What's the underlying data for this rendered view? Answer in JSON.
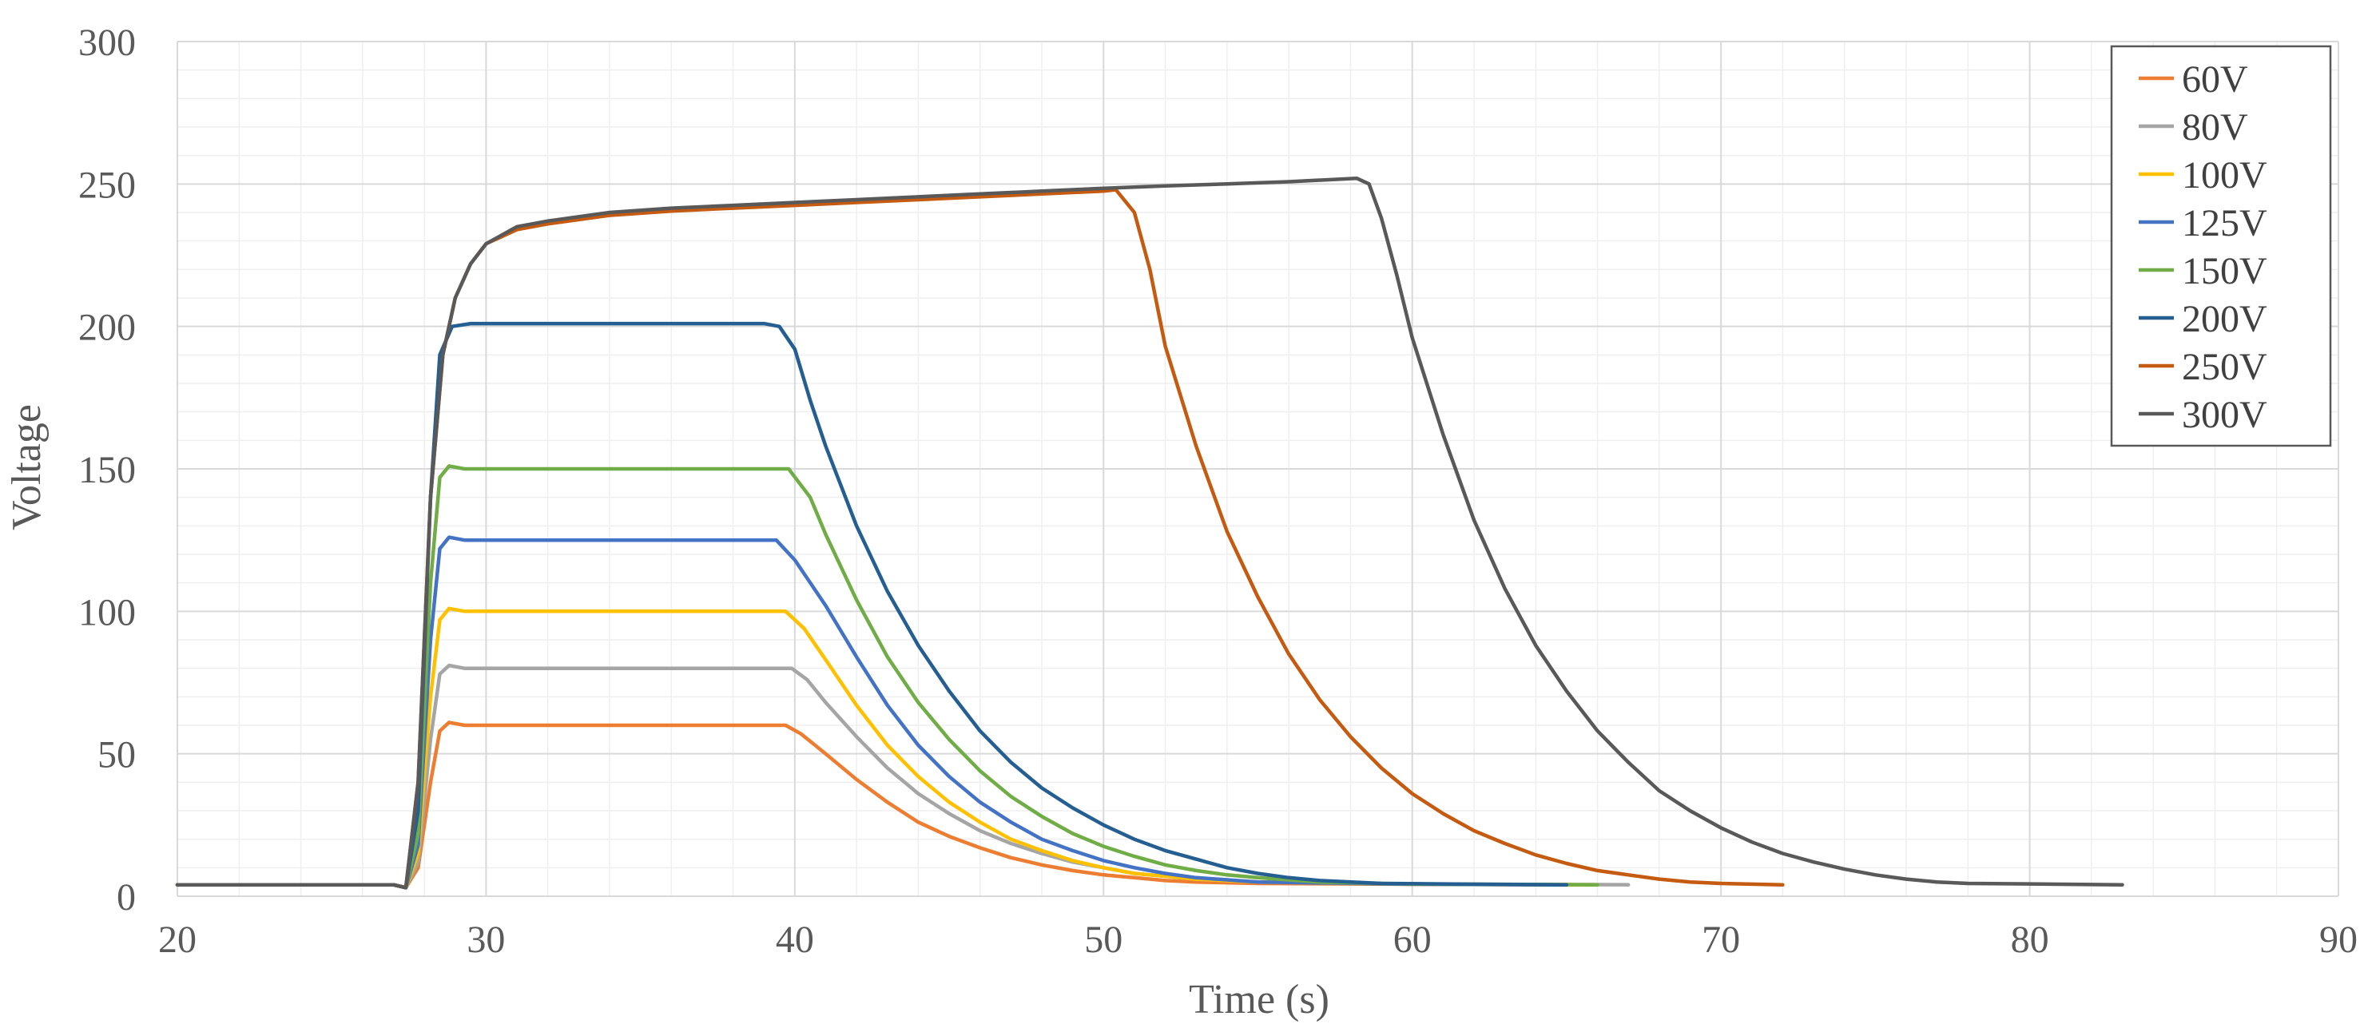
{
  "chart_data": {
    "type": "line",
    "title": "",
    "xlabel": "Time (s)",
    "ylabel": "Voltage",
    "xlim": [
      20,
      90
    ],
    "ylim": [
      0,
      300
    ],
    "x_ticks": [
      20,
      30,
      40,
      50,
      60,
      70,
      80,
      90
    ],
    "y_ticks": [
      0,
      50,
      100,
      150,
      200,
      250,
      300
    ],
    "x_minor_step": 2,
    "y_minor_step": 10,
    "grid": true,
    "legend_position": "top-right",
    "series": [
      {
        "name": "60V",
        "color": "#ED7D31",
        "points": [
          [
            20,
            4
          ],
          [
            27,
            4
          ],
          [
            27.4,
            3
          ],
          [
            27.8,
            10
          ],
          [
            28.2,
            40
          ],
          [
            28.5,
            58
          ],
          [
            28.8,
            61
          ],
          [
            29.3,
            60
          ],
          [
            39,
            60
          ],
          [
            39.7,
            60
          ],
          [
            40.2,
            57
          ],
          [
            41,
            50
          ],
          [
            42,
            41
          ],
          [
            43,
            33
          ],
          [
            44,
            26
          ],
          [
            45,
            21
          ],
          [
            46,
            17
          ],
          [
            47,
            13.5
          ],
          [
            48,
            11
          ],
          [
            49,
            9
          ],
          [
            50,
            7.5
          ],
          [
            51,
            6.5
          ],
          [
            52,
            5.5
          ],
          [
            53,
            5
          ],
          [
            55,
            4.5
          ],
          [
            60,
            4.2
          ],
          [
            65,
            4
          ]
        ]
      },
      {
        "name": "80V",
        "color": "#A5A5A5",
        "points": [
          [
            20,
            4
          ],
          [
            27,
            4
          ],
          [
            27.4,
            3
          ],
          [
            27.8,
            12
          ],
          [
            28.2,
            55
          ],
          [
            28.5,
            78
          ],
          [
            28.8,
            81
          ],
          [
            29.3,
            80
          ],
          [
            39,
            80
          ],
          [
            39.9,
            80
          ],
          [
            40.4,
            76
          ],
          [
            41,
            68
          ],
          [
            42,
            56
          ],
          [
            43,
            45
          ],
          [
            44,
            36
          ],
          [
            45,
            29
          ],
          [
            46,
            23
          ],
          [
            47,
            18.5
          ],
          [
            48,
            15
          ],
          [
            49,
            12
          ],
          [
            50,
            10
          ],
          [
            51,
            8
          ],
          [
            52,
            7
          ],
          [
            53,
            6
          ],
          [
            55,
            5
          ],
          [
            60,
            4.3
          ],
          [
            67,
            4
          ]
        ]
      },
      {
        "name": "100V",
        "color": "#FFC000",
        "points": [
          [
            20,
            4
          ],
          [
            27,
            4
          ],
          [
            27.4,
            3
          ],
          [
            27.8,
            15
          ],
          [
            28.2,
            70
          ],
          [
            28.5,
            97
          ],
          [
            28.8,
            101
          ],
          [
            29.3,
            100
          ],
          [
            39,
            100
          ],
          [
            39.7,
            100
          ],
          [
            40.3,
            94
          ],
          [
            41,
            83
          ],
          [
            42,
            67
          ],
          [
            43,
            53
          ],
          [
            44,
            42
          ],
          [
            45,
            33
          ],
          [
            46,
            26
          ],
          [
            47,
            20
          ],
          [
            48,
            16
          ],
          [
            49,
            12.5
          ],
          [
            50,
            10
          ],
          [
            51,
            8
          ],
          [
            52,
            7
          ],
          [
            53,
            6
          ],
          [
            55,
            5
          ],
          [
            60,
            4.2
          ],
          [
            66,
            4
          ]
        ]
      },
      {
        "name": "125V",
        "color": "#4472C4",
        "points": [
          [
            20,
            4
          ],
          [
            27,
            4
          ],
          [
            27.4,
            3
          ],
          [
            27.8,
            18
          ],
          [
            28.2,
            90
          ],
          [
            28.5,
            122
          ],
          [
            28.8,
            126
          ],
          [
            29.3,
            125
          ],
          [
            39,
            125
          ],
          [
            39.4,
            125
          ],
          [
            40,
            118
          ],
          [
            41,
            102
          ],
          [
            42,
            84
          ],
          [
            43,
            67
          ],
          [
            44,
            53
          ],
          [
            45,
            42
          ],
          [
            46,
            33
          ],
          [
            47,
            26
          ],
          [
            48,
            20
          ],
          [
            49,
            16
          ],
          [
            50,
            12.5
          ],
          [
            51,
            10
          ],
          [
            52,
            8
          ],
          [
            53,
            6.5
          ],
          [
            55,
            5
          ],
          [
            60,
            4.2
          ],
          [
            65,
            4
          ]
        ]
      },
      {
        "name": "150V",
        "color": "#70AD47",
        "points": [
          [
            20,
            4
          ],
          [
            27,
            4
          ],
          [
            27.4,
            3
          ],
          [
            27.8,
            22
          ],
          [
            28.2,
            110
          ],
          [
            28.5,
            147
          ],
          [
            28.8,
            151
          ],
          [
            29.3,
            150
          ],
          [
            39,
            150
          ],
          [
            39.8,
            150
          ],
          [
            40.5,
            140
          ],
          [
            41,
            127
          ],
          [
            42,
            104
          ],
          [
            43,
            84
          ],
          [
            44,
            68
          ],
          [
            45,
            55
          ],
          [
            46,
            44
          ],
          [
            47,
            35
          ],
          [
            48,
            28
          ],
          [
            49,
            22
          ],
          [
            50,
            17.5
          ],
          [
            51,
            14
          ],
          [
            52,
            11
          ],
          [
            53,
            9
          ],
          [
            54,
            7.5
          ],
          [
            55,
            6.5
          ],
          [
            57,
            5
          ],
          [
            60,
            4.3
          ],
          [
            66,
            4
          ]
        ]
      },
      {
        "name": "200V",
        "color": "#255E91",
        "points": [
          [
            20,
            4
          ],
          [
            27,
            4
          ],
          [
            27.4,
            3
          ],
          [
            27.8,
            30
          ],
          [
            28.2,
            140
          ],
          [
            28.5,
            190
          ],
          [
            28.9,
            200
          ],
          [
            29.5,
            201
          ],
          [
            39,
            201
          ],
          [
            39.5,
            200
          ],
          [
            40,
            192
          ],
          [
            40.5,
            174
          ],
          [
            41,
            158
          ],
          [
            42,
            130
          ],
          [
            43,
            107
          ],
          [
            44,
            88
          ],
          [
            45,
            72
          ],
          [
            46,
            58
          ],
          [
            47,
            47
          ],
          [
            48,
            38
          ],
          [
            49,
            31
          ],
          [
            50,
            25
          ],
          [
            51,
            20
          ],
          [
            52,
            16
          ],
          [
            53,
            13
          ],
          [
            54,
            10
          ],
          [
            55,
            8
          ],
          [
            56,
            6.5
          ],
          [
            57,
            5.5
          ],
          [
            59,
            4.5
          ],
          [
            62,
            4.2
          ],
          [
            65,
            4
          ]
        ]
      },
      {
        "name": "250V",
        "color": "#C55A11",
        "points": [
          [
            20,
            4
          ],
          [
            27,
            4
          ],
          [
            27.4,
            3
          ],
          [
            27.8,
            40
          ],
          [
            28.2,
            140
          ],
          [
            28.6,
            190
          ],
          [
            29,
            210
          ],
          [
            29.5,
            222
          ],
          [
            30,
            229
          ],
          [
            31,
            234
          ],
          [
            32,
            236
          ],
          [
            34,
            239
          ],
          [
            36,
            240.5
          ],
          [
            38,
            241.5
          ],
          [
            40,
            242.5
          ],
          [
            42,
            243.5
          ],
          [
            44,
            244.5
          ],
          [
            46,
            245.5
          ],
          [
            48,
            246.5
          ],
          [
            50,
            247.5
          ],
          [
            50.4,
            248
          ],
          [
            51,
            240
          ],
          [
            51.5,
            220
          ],
          [
            52,
            193
          ],
          [
            53,
            158
          ],
          [
            54,
            128
          ],
          [
            55,
            105
          ],
          [
            56,
            85
          ],
          [
            57,
            69
          ],
          [
            58,
            56
          ],
          [
            59,
            45
          ],
          [
            60,
            36
          ],
          [
            61,
            29
          ],
          [
            62,
            23
          ],
          [
            63,
            18.5
          ],
          [
            64,
            14.5
          ],
          [
            65,
            11.5
          ],
          [
            66,
            9
          ],
          [
            67,
            7.5
          ],
          [
            68,
            6
          ],
          [
            69,
            5
          ],
          [
            70,
            4.5
          ],
          [
            72,
            4
          ]
        ]
      },
      {
        "name": "300V",
        "color": "#595959",
        "points": [
          [
            20,
            4
          ],
          [
            27,
            4
          ],
          [
            27.4,
            3
          ],
          [
            27.8,
            40
          ],
          [
            28.2,
            140
          ],
          [
            28.6,
            190
          ],
          [
            29,
            210
          ],
          [
            29.5,
            222
          ],
          [
            30,
            229
          ],
          [
            31,
            235
          ],
          [
            32,
            237
          ],
          [
            34,
            240
          ],
          [
            36,
            241.5
          ],
          [
            38,
            242.5
          ],
          [
            40,
            243.5
          ],
          [
            42,
            244.5
          ],
          [
            44,
            245.5
          ],
          [
            46,
            246.5
          ],
          [
            48,
            247.5
          ],
          [
            50,
            248.5
          ],
          [
            52,
            249.3
          ],
          [
            54,
            250
          ],
          [
            56,
            250.8
          ],
          [
            58.2,
            252
          ],
          [
            58.6,
            250
          ],
          [
            59,
            238
          ],
          [
            59.5,
            218
          ],
          [
            60,
            196
          ],
          [
            61,
            162
          ],
          [
            62,
            132
          ],
          [
            63,
            108
          ],
          [
            64,
            88
          ],
          [
            65,
            72
          ],
          [
            66,
            58
          ],
          [
            67,
            47
          ],
          [
            68,
            37
          ],
          [
            69,
            30
          ],
          [
            70,
            24
          ],
          [
            71,
            19
          ],
          [
            72,
            15
          ],
          [
            73,
            12
          ],
          [
            74,
            9.5
          ],
          [
            75,
            7.5
          ],
          [
            76,
            6
          ],
          [
            77,
            5
          ],
          [
            78,
            4.5
          ],
          [
            83,
            4
          ]
        ]
      }
    ]
  }
}
